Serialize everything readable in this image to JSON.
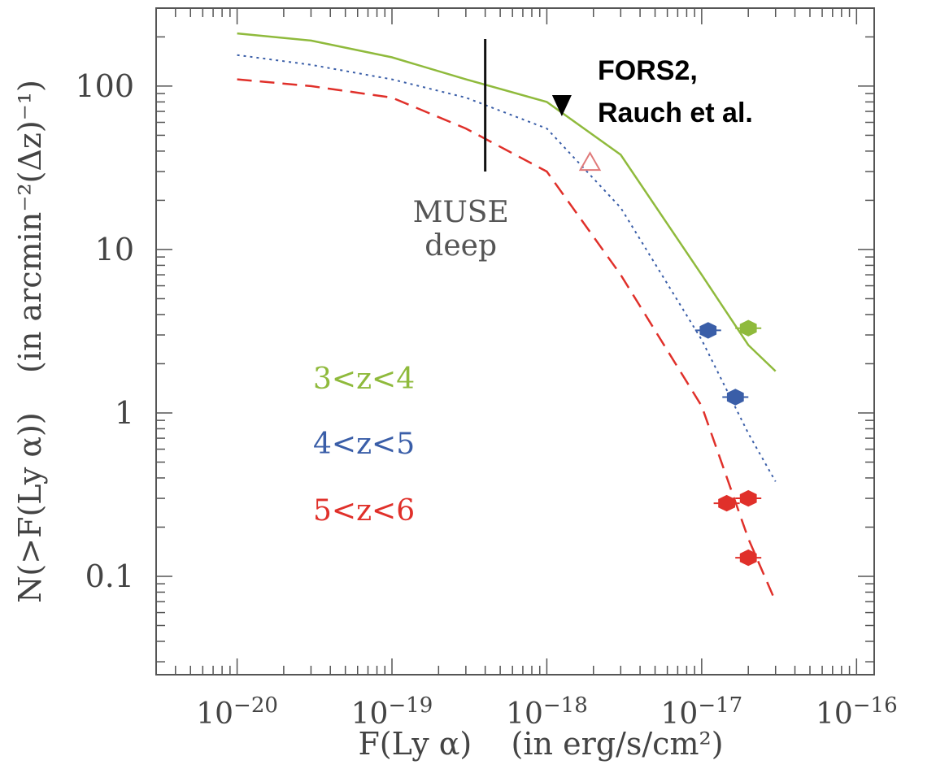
{
  "chart_data": {
    "type": "line",
    "x_scale": "log",
    "y_scale": "log",
    "xlim": [
      3e-21,
      1.3e-16
    ],
    "ylim": [
      0.025,
      300
    ],
    "x_ticks": [
      {
        "value": 1e-20,
        "base": "10",
        "exp": "−20"
      },
      {
        "value": 1e-19,
        "base": "10",
        "exp": "−19"
      },
      {
        "value": 1e-18,
        "base": "10",
        "exp": "−18"
      },
      {
        "value": 1e-17,
        "base": "10",
        "exp": "−17"
      },
      {
        "value": 1e-16,
        "base": "10",
        "exp": "−16"
      }
    ],
    "y_ticks": [
      {
        "value": 0.1,
        "label": "0.1"
      },
      {
        "value": 1,
        "label": "1"
      },
      {
        "value": 10,
        "label": "10"
      },
      {
        "value": 100,
        "label": "100"
      }
    ],
    "xlabel": "F(Ly α)    (in erg/s/cm²)",
    "ylabel": "N(>F(Ly α))    (in arcmin⁻²(Δz)⁻¹)",
    "series": [
      {
        "name": "3<z<4",
        "color": "#8fba3c",
        "style": "solid",
        "x": [
          1e-20,
          3e-20,
          1e-19,
          3e-19,
          1e-18,
          3e-18,
          1e-17,
          2e-17,
          3e-17
        ],
        "y": [
          210,
          190,
          150,
          110,
          80,
          38,
          7,
          2.6,
          1.8
        ],
        "points": [
          {
            "x": 2e-17,
            "y": 3.3
          }
        ]
      },
      {
        "name": "4<z<5",
        "color": "#3a5ea8",
        "style": "dotted",
        "x": [
          1e-20,
          3e-20,
          1e-19,
          3e-19,
          1e-18,
          3e-18,
          1e-17,
          2e-17,
          3e-17
        ],
        "y": [
          155,
          135,
          110,
          85,
          55,
          18,
          2.8,
          0.75,
          0.38
        ],
        "points": [
          {
            "x": 1.1e-17,
            "y": 3.2
          },
          {
            "x": 1.65e-17,
            "y": 1.25
          }
        ]
      },
      {
        "name": "5<z<6",
        "color": "#e0302a",
        "style": "dashed",
        "x": [
          1e-20,
          3e-20,
          1e-19,
          3e-19,
          1e-18,
          3e-18,
          1e-17,
          2e-17,
          3e-17
        ],
        "y": [
          110,
          100,
          85,
          55,
          30,
          7,
          1.1,
          0.17,
          0.07
        ],
        "points": [
          {
            "x": 1.45e-17,
            "y": 0.28
          },
          {
            "x": 2e-17,
            "y": 0.3
          },
          {
            "x": 2e-17,
            "y": 0.13
          }
        ]
      }
    ],
    "annotations": {
      "muse_line": {
        "x": 4e-19,
        "y_range": [
          30,
          300
        ],
        "label_line1": "MUSE",
        "label_line2": "deep"
      },
      "fors2_marker": {
        "x": 1.25e-18,
        "y": 75,
        "label_line1": "FORS2,",
        "label_line2": "Rauch et al."
      },
      "open_triangle": {
        "x": 1.9e-18,
        "y": 34,
        "color": "#e07a7a"
      }
    },
    "grid": false,
    "legend": "left"
  }
}
